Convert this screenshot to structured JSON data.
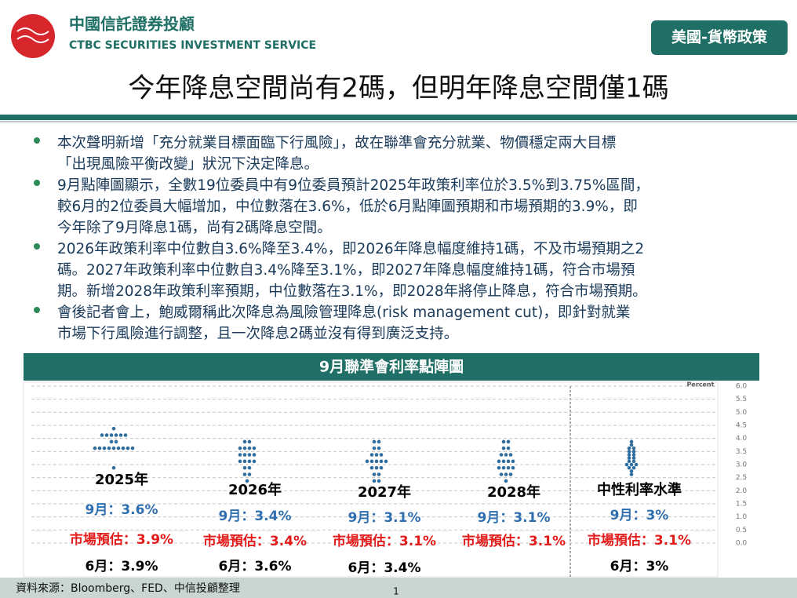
{
  "header": {
    "brand_zh": "中國信託證券投顧",
    "brand_en": "CTBC SECURITIES INVESTMENT SERVICE",
    "badge": "美國-貨幣政策"
  },
  "title": "今年降息空間尚有2碼，但明年降息空間僅1碼",
  "bullets": [
    [
      "本次聲明新增「充分就業目標面臨下行風險」，故在聯準會充分就業、物價穩定兩大目標",
      "「出現風險平衡改變」狀況下決定降息。"
    ],
    [
      "9月點陣圖顯示，全數19位委員中有9位委員預計2025年政策利率位於3.5%到3.75%區間，",
      "較6月的2位委員大幅增加，中位數落在3.6%，低於6月點陣圖預期和市場預期的3.9%，即",
      "今年除了9月降息1碼，尚有2碼降息空間。"
    ],
    [
      "2026年政策利率中位數自3.6%降至3.4%，即2026年降息幅度維持1碼，不及市場預期之2",
      "碼。2027年政策利率中位數自3.4%降至3.1%，即2027年降息幅度維持1碼，符合市場預",
      "期。新增2028年政策利率預期，中位數落在3.1%，即2028年將停止降息，符合市場預期。"
    ],
    [
      "會後記者會上，鮑威爾稱此次降息為風險管理降息(risk management cut)，即針對就業",
      "市場下行風險進行調整，且一次降息2碼並沒有得到廣泛支持。"
    ]
  ],
  "chart_banner": "9月聯準會利率點陣圖",
  "chart_data": {
    "type": "dot",
    "y_label": "Percent",
    "color": "#2f6e9e",
    "ylim": [
      0,
      6
    ],
    "yticks": [
      {
        "value": 0,
        "label": "0.0"
      },
      {
        "value": 0.5,
        "label": "0.5"
      },
      {
        "value": 1,
        "label": "1.0"
      },
      {
        "value": 1.5,
        "label": "1.5"
      },
      {
        "value": 2,
        "label": "2.0"
      },
      {
        "value": 2.5,
        "label": "2.5"
      },
      {
        "value": 3,
        "label": "3.0"
      },
      {
        "value": 3.5,
        "label": "3.5"
      },
      {
        "value": 4,
        "label": "4.0"
      },
      {
        "value": 4.5,
        "label": "4.5"
      },
      {
        "value": 5,
        "label": "5.0"
      },
      {
        "value": 5.5,
        "label": "5.5"
      },
      {
        "value": 6,
        "label": "6.0"
      }
    ],
    "values": [
      [
        4.375,
        4.125,
        4.125,
        4.125,
        4.125,
        4.125,
        4.125,
        3.875,
        3.875,
        3.625,
        3.625,
        3.625,
        3.625,
        3.625,
        3.625,
        3.625,
        3.625,
        3.625,
        2.875
      ],
      [
        3.875,
        3.875,
        3.625,
        3.625,
        3.625,
        3.625,
        3.375,
        3.375,
        3.375,
        3.375,
        3.125,
        3.125,
        3.125,
        3.125,
        2.875,
        2.875,
        2.625,
        2.625,
        2.375
      ],
      [
        3.875,
        3.875,
        3.625,
        3.625,
        3.375,
        3.375,
        3.375,
        3.125,
        3.125,
        3.125,
        3.125,
        3.125,
        2.875,
        2.875,
        2.875,
        2.625,
        2.625,
        2.375,
        2.375
      ],
      [
        3.875,
        3.875,
        3.625,
        3.625,
        3.375,
        3.375,
        3.375,
        3.125,
        3.125,
        3.125,
        3.125,
        2.875,
        2.875,
        2.875,
        2.875,
        2.625,
        2.625,
        2.625,
        2.375
      ],
      [
        3.875,
        3.75,
        3.625,
        3.625,
        3.5,
        3.5,
        3.375,
        3.375,
        3.25,
        3.25,
        3.125,
        3.125,
        3,
        3,
        3,
        2.875,
        2.875,
        2.75,
        2.625
      ]
    ],
    "annotations": [
      {
        "title": "2025年",
        "sept": "9月：3.6%",
        "market": "市場預估：3.9%",
        "june": "6月：3.9%"
      },
      {
        "title": "2026年",
        "sept": "9月：3.4%",
        "market": "市場預估：3.4%",
        "june": "6月：3.6%"
      },
      {
        "title": "2027年",
        "sept": "9月：3.1%",
        "market": "市場預估：3.1%",
        "june": "6月：3.4%"
      },
      {
        "title": "2028年",
        "sept": "9月：3.1%",
        "market": "市場預估：3.1%"
      },
      {
        "title": "中性利率水準",
        "sept": "9月：3%",
        "market": "市場預估：3.1%",
        "june": "6月：3%"
      }
    ]
  },
  "footer": {
    "source": "資料來源：Bloomberg、FED、中信投顧整理",
    "page": "1"
  }
}
